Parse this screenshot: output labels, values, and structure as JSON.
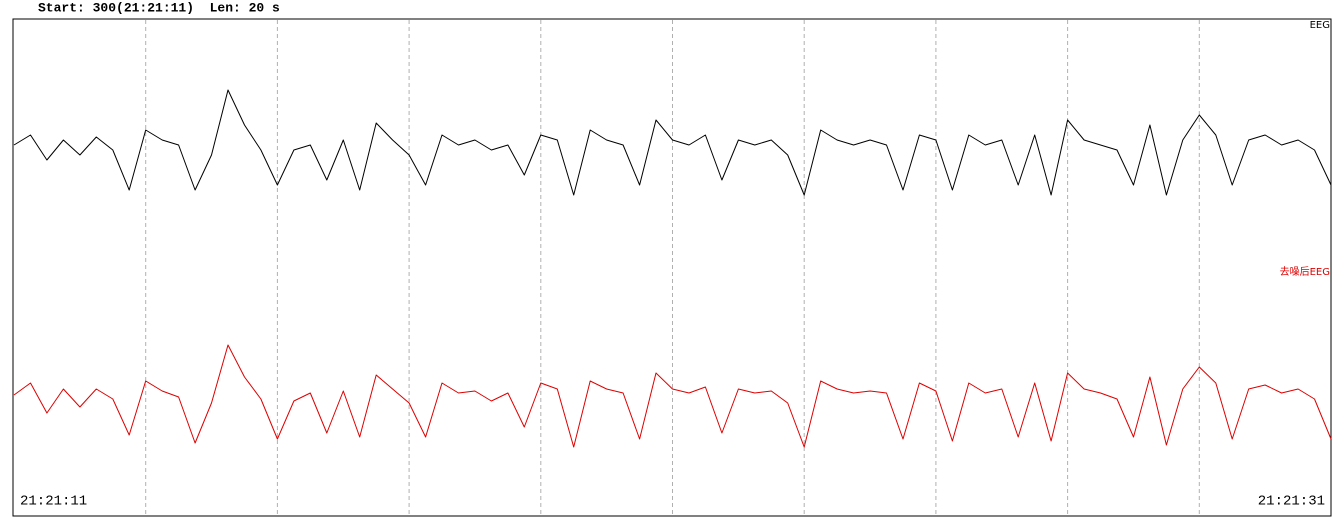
{
  "chart_data": {
    "type": "line",
    "header": "Start: 300(21:21:11)  Len: 20 s",
    "xlim": [
      0,
      20
    ],
    "xticks": [
      {
        "value": 0,
        "label": "21:21:11"
      },
      {
        "value": 20,
        "label": "21:21:31"
      }
    ],
    "grid_x": [
      2,
      4,
      6,
      8,
      10,
      12,
      14,
      16,
      18
    ],
    "x": [
      0,
      0.25,
      0.5,
      0.75,
      1,
      1.25,
      1.5,
      1.75,
      2,
      2.25,
      2.5,
      2.75,
      3,
      3.25,
      3.5,
      3.75,
      4,
      4.25,
      4.5,
      4.75,
      5,
      5.25,
      5.5,
      5.75,
      6,
      6.25,
      6.5,
      6.75,
      7,
      7.25,
      7.5,
      7.75,
      8,
      8.25,
      8.5,
      8.75,
      9,
      9.25,
      9.5,
      9.75,
      10,
      10.25,
      10.5,
      10.75,
      11,
      11.25,
      11.5,
      11.75,
      12,
      12.25,
      12.5,
      12.75,
      13,
      13.25,
      13.5,
      13.75,
      14,
      14.25,
      14.5,
      14.75,
      15,
      15.25,
      15.5,
      15.75,
      16,
      16.25,
      16.5,
      16.75,
      17,
      17.25,
      17.5,
      17.75,
      18,
      18.25,
      18.5,
      18.75,
      19,
      19.25,
      19.5,
      19.75,
      20
    ],
    "series": [
      {
        "name": "EEG",
        "color": "#000000",
        "values": [
          0,
          10,
          -15,
          5,
          -10,
          8,
          -5,
          -45,
          15,
          5,
          0,
          -45,
          -10,
          55,
          20,
          -5,
          -40,
          -5,
          0,
          -35,
          5,
          -45,
          22,
          5,
          -10,
          -40,
          10,
          0,
          5,
          -5,
          0,
          -30,
          10,
          5,
          -50,
          15,
          5,
          0,
          -40,
          25,
          5,
          0,
          10,
          -35,
          5,
          0,
          5,
          -10,
          -50,
          15,
          5,
          0,
          5,
          0,
          -45,
          10,
          5,
          -45,
          10,
          0,
          5,
          -40,
          10,
          -50,
          25,
          5,
          0,
          -5,
          -40,
          20,
          -50,
          5,
          30,
          10,
          -40,
          5,
          10,
          0,
          5,
          -5,
          -40
        ]
      },
      {
        "name": "去噪后EEG",
        "color": "#dd0000",
        "values": [
          0,
          12,
          -18,
          6,
          -12,
          6,
          -4,
          -40,
          14,
          4,
          -2,
          -48,
          -8,
          50,
          18,
          -4,
          -44,
          -6,
          2,
          -38,
          4,
          -42,
          20,
          6,
          -8,
          -42,
          12,
          2,
          4,
          -6,
          2,
          -32,
          12,
          6,
          -52,
          14,
          6,
          2,
          -44,
          22,
          6,
          2,
          8,
          -38,
          6,
          2,
          4,
          -8,
          -52,
          14,
          6,
          2,
          4,
          2,
          -44,
          12,
          4,
          -46,
          12,
          2,
          6,
          -42,
          12,
          -46,
          22,
          6,
          2,
          -4,
          -42,
          18,
          -50,
          6,
          28,
          12,
          -44,
          6,
          10,
          2,
          6,
          -4,
          -44
        ]
      }
    ]
  }
}
